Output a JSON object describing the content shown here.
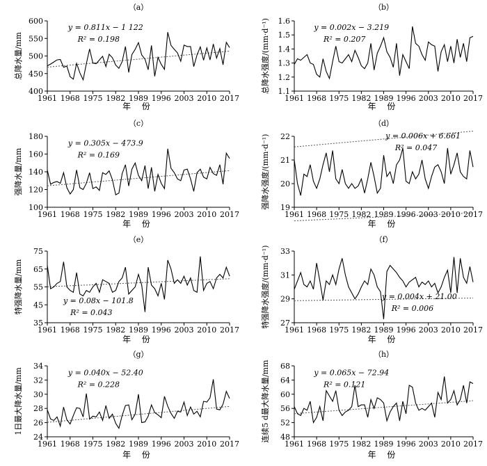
{
  "chart_data": [
    {
      "type": "line",
      "panel_label": "（a）",
      "ylabel": "总降水量/mm",
      "xlabel": "年 份",
      "ylim": [
        400,
        600
      ],
      "yticks": [
        "400",
        "450",
        "500",
        "550",
        "600"
      ],
      "xticks": [
        "1961",
        "1968",
        "1975",
        "1982",
        "1989",
        "1996",
        "2003",
        "2010",
        "2017"
      ],
      "x_start": 1961,
      "x_end": 2017,
      "equation": "y = 0.811x − 1 122",
      "r2": "R² = 0.198",
      "trend": [
        0.811,
        -1122
      ],
      "eq_pos": "top-left",
      "values": [
        472,
        477,
        483,
        489,
        490,
        468,
        471,
        441,
        434,
        479,
        452,
        432,
        478,
        520,
        480,
        478,
        489,
        499,
        470,
        505,
        495,
        474,
        465,
        484,
        527,
        453,
        504,
        519,
        538,
        503,
        491,
        461,
        530,
        442,
        496,
        476,
        462,
        568,
        530,
        519,
        509,
        485,
        531,
        527,
        527,
        470,
        503,
        526,
        488,
        523,
        489,
        534,
        494,
        521,
        475,
        539,
        524
      ]
    },
    {
      "type": "line",
      "panel_label": "（b）",
      "ylabel": "总降水强度/(mm·d⁻¹)",
      "xlabel": "年 份",
      "ylim": [
        1.1,
        1.6
      ],
      "yticks": [
        "1.1",
        "1.2",
        "1.3",
        "1.4",
        "1.5",
        "1.6"
      ],
      "xticks": [
        "1961",
        "1968",
        "1975",
        "1982",
        "1989",
        "1996",
        "2003",
        "2010",
        "2017"
      ],
      "x_start": 1961,
      "x_end": 2017,
      "equation": "y = 0.002x − 3.219",
      "r2": "R² = 0.207",
      "trend": [
        0.002,
        -3.219
      ],
      "eq_pos": "top-left",
      "values": [
        1.29,
        1.33,
        1.32,
        1.34,
        1.36,
        1.3,
        1.29,
        1.22,
        1.2,
        1.33,
        1.24,
        1.19,
        1.31,
        1.42,
        1.31,
        1.3,
        1.33,
        1.36,
        1.31,
        1.39,
        1.34,
        1.28,
        1.26,
        1.3,
        1.44,
        1.25,
        1.37,
        1.42,
        1.48,
        1.38,
        1.34,
        1.27,
        1.44,
        1.21,
        1.36,
        1.31,
        1.26,
        1.56,
        1.44,
        1.42,
        1.36,
        1.32,
        1.45,
        1.43,
        1.42,
        1.24,
        1.38,
        1.43,
        1.31,
        1.42,
        1.3,
        1.47,
        1.34,
        1.44,
        1.31,
        1.48,
        1.49
      ]
    },
    {
      "type": "line",
      "panel_label": "（c）",
      "ylabel": "强降水量/mm",
      "xlabel": "年 份",
      "ylim": [
        100,
        180
      ],
      "yticks": [
        "100",
        "120",
        "140",
        "160",
        "180"
      ],
      "xticks": [
        "1961",
        "1968",
        "1975",
        "1982",
        "1989",
        "1996",
        "2003",
        "2010",
        "2017"
      ],
      "x_start": 1961,
      "x_end": 2017,
      "equation": "y = 0.305x − 473.9",
      "r2": "R² = 0.169",
      "trend": [
        0.305,
        -473.9
      ],
      "eq_pos": "top-left",
      "values": [
        142,
        126,
        128,
        129,
        127,
        139,
        122,
        115,
        120,
        142,
        122,
        120,
        127,
        139,
        121,
        123,
        119,
        139,
        137,
        141,
        131,
        114,
        116,
        138,
        148,
        124,
        143,
        150,
        136,
        130,
        147,
        121,
        145,
        118,
        137,
        127,
        121,
        166,
        144,
        139,
        132,
        130,
        142,
        143,
        132,
        118,
        139,
        143,
        134,
        132,
        145,
        138,
        136,
        148,
        126,
        161,
        155
      ]
    },
    {
      "type": "line",
      "panel_label": "（d）",
      "ylabel": "强降水强度/(mm·d⁻¹)",
      "xlabel": "年 份",
      "ylim": [
        19,
        22
      ],
      "yticks": [
        "19",
        "20",
        "21",
        "22"
      ],
      "xticks": [
        "1961",
        "1968",
        "1975",
        "1982",
        "1989",
        "1996",
        "2003",
        "2010",
        "2017"
      ],
      "x_start": 1961,
      "x_end": 2017,
      "equation": "y = 0.006x + 6.661",
      "r2": "R² = 0.047",
      "trend": [
        0.006,
        6.661
      ],
      "eq_pos": "top-right",
      "values": [
        21.0,
        20.0,
        19.5,
        20.4,
        20.3,
        20.8,
        20.1,
        19.8,
        20.2,
        20.8,
        21.3,
        20.5,
        21.4,
        20.2,
        20.0,
        20.6,
        20.0,
        19.8,
        20.0,
        19.8,
        19.9,
        20.2,
        19.6,
        20.2,
        20.9,
        20.3,
        19.6,
        19.8,
        21.2,
        20.3,
        20.5,
        20.0,
        20.8,
        21.0,
        21.5,
        20.1,
        20.0,
        20.5,
        20.2,
        20.4,
        21.0,
        20.2,
        19.8,
        20.3,
        20.7,
        20.8,
        20.5,
        20.0,
        21.5,
        20.4,
        20.8,
        21.3,
        20.5,
        20.3,
        20.2,
        21.4,
        20.7
      ]
    },
    {
      "type": "line",
      "panel_label": "（e）",
      "ylabel": "特强降水量/mm",
      "xlabel": "年 份",
      "ylim": [
        35,
        75
      ],
      "yticks": [
        "35",
        "45",
        "55",
        "65",
        "75"
      ],
      "xticks": [
        "1961",
        "1968",
        "1975",
        "1982",
        "1989",
        "1996",
        "2003",
        "2010",
        "2017"
      ],
      "x_start": 1961,
      "x_end": 2017,
      "equation": "y = 0.08x − 101.8",
      "r2": "R² = 0.043",
      "trend": [
        0.08,
        -101.8
      ],
      "eq_pos": "bottom-left",
      "values": [
        67,
        54,
        55,
        57,
        58,
        69,
        55,
        53,
        52,
        63,
        51,
        50,
        53,
        52,
        55,
        57,
        52,
        59,
        58,
        57,
        52,
        53,
        58,
        60,
        66,
        51,
        53,
        55,
        62,
        56,
        41,
        66,
        56,
        54,
        50,
        57,
        48,
        70,
        65,
        57,
        59,
        57,
        61,
        56,
        60,
        53,
        52,
        72,
        53,
        57,
        58,
        54,
        60,
        62,
        60,
        66,
        61
      ]
    },
    {
      "type": "line",
      "panel_label": "（f）",
      "ylabel": "特强降水强度/(mm·d⁻¹)",
      "xlabel": "年 份",
      "ylim": [
        27,
        33
      ],
      "yticks": [
        "27",
        "29",
        "31",
        "33"
      ],
      "xticks": [
        "1961",
        "1968",
        "1975",
        "1982",
        "1989",
        "1996",
        "2003",
        "2010",
        "2017"
      ],
      "x_start": 1961,
      "x_end": 2017,
      "equation": "y = 0.004x + 21.00",
      "r2": "R² = 0.006",
      "trend": [
        0.004,
        21.0
      ],
      "eq_pos": "bottom-right",
      "values": [
        29.8,
        30.5,
        31.2,
        30.2,
        30.0,
        30.5,
        29.8,
        32.0,
        30.5,
        28.9,
        30.5,
        30.2,
        31.0,
        30.2,
        31.5,
        32.4,
        31.0,
        30.0,
        29.5,
        29.0,
        29.4,
        30.0,
        30.5,
        30.2,
        31.5,
        31.0,
        30.0,
        29.6,
        27.3,
        31.3,
        31.8,
        31.5,
        31.2,
        30.8,
        30.5,
        30.0,
        30.4,
        30.6,
        30.8,
        30.0,
        30.4,
        30.2,
        30.5,
        30.0,
        30.3,
        29.5,
        30.0,
        30.8,
        31.4,
        29.5,
        32.5,
        29.5,
        32.4,
        30.8,
        30.3,
        31.7,
        30.4
      ]
    },
    {
      "type": "line",
      "panel_label": "（g）",
      "ylabel": "1日最大降水量/mm",
      "xlabel": "年 份",
      "ylim": [
        24,
        34
      ],
      "yticks": [
        "24",
        "26",
        "28",
        "30",
        "32",
        "34"
      ],
      "xticks": [
        "1961",
        "1968",
        "1975",
        "1982",
        "1989",
        "1996",
        "2003",
        "2010",
        "2017"
      ],
      "x_start": 1961,
      "x_end": 2017,
      "equation": "y = 0.040x − 52.40",
      "r2": "R² = 0.228",
      "trend": [
        0.04,
        -52.4
      ],
      "eq_pos": "top-left",
      "values": [
        27.8,
        26.5,
        26.3,
        26.8,
        25.5,
        28.2,
        26.4,
        25.8,
        27.0,
        28.1,
        28.0,
        26.8,
        30.1,
        26.5,
        26.9,
        26.8,
        27.5,
        26.3,
        28.4,
        26.6,
        27.2,
        25.9,
        25.2,
        27.0,
        28.4,
        28.5,
        26.4,
        27.2,
        30.0,
        26.0,
        26.1,
        26.9,
        28.5,
        27.4,
        27.1,
        26.7,
        29.7,
        28.3,
        27.3,
        26.6,
        27.6,
        27.5,
        28.9,
        27.0,
        28.2,
        27.2,
        27.6,
        26.8,
        29.0,
        28.9,
        29.5,
        32.1,
        27.9,
        27.8,
        28.6,
        30.4,
        29.4
      ]
    },
    {
      "type": "line",
      "panel_label": "（h）",
      "ylabel": "连续5 d最大降水量/mm",
      "xlabel": "年 份",
      "ylim": [
        48,
        68
      ],
      "yticks": [
        "48",
        "52",
        "56",
        "60",
        "64",
        "68"
      ],
      "xticks": [
        "1961",
        "1968",
        "1975",
        "1982",
        "1989",
        "1996",
        "2003",
        "2010",
        "2017"
      ],
      "x_start": 1961,
      "x_end": 2017,
      "equation": "y = 0.065x − 72.94",
      "r2": "R² = 0.121",
      "trend": [
        0.065,
        -72.94
      ],
      "eq_pos": "top-left",
      "values": [
        56.5,
        54.5,
        54.0,
        56.0,
        55.5,
        58.0,
        52.0,
        53.5,
        56.5,
        52.5,
        61.0,
        59.5,
        58.0,
        61.0,
        55.5,
        54.0,
        55.0,
        55.5,
        56.5,
        62.5,
        56.5,
        57.0,
        57.0,
        53.5,
        58.5,
        56.0,
        59.0,
        58.5,
        57.5,
        52.5,
        55.0,
        56.5,
        57.5,
        52.5,
        58.0,
        54.5,
        62.5,
        62.0,
        57.5,
        55.5,
        56.0,
        55.5,
        56.5,
        57.5,
        53.5,
        60.5,
        58.5,
        65.0,
        57.5,
        58.5,
        61.0,
        57.0,
        58.5,
        62.5,
        57.5,
        63.5,
        63.0
      ]
    }
  ]
}
